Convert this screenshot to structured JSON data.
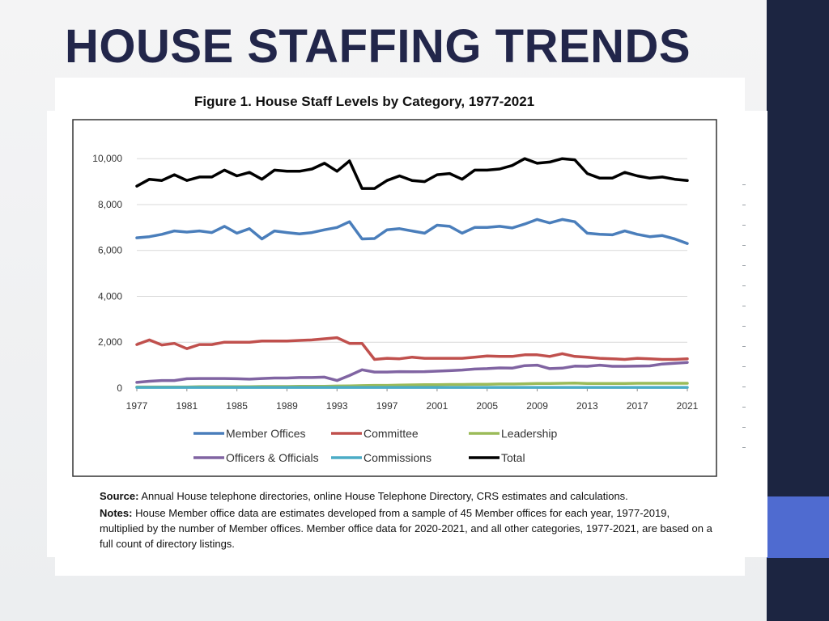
{
  "slide": {
    "title": "HOUSE STAFFING TRENDS",
    "accent_color": "#1c2541",
    "highlight_color": "#4f6bd0"
  },
  "figure": {
    "caption": "Figure 1. House Staff Levels by Category, 1977-2021",
    "source_label": "Source:",
    "source_text": "Annual House telephone directories, online House Telephone Directory, CRS estimates and calculations.",
    "notes_label": "Notes:",
    "notes_text": "House Member office data are estimates developed from a sample of 45 Member offices for each year, 1977-2019, multiplied by the number of Member offices. Member office data for 2020-2021, and all other categories, 1977-2021, are based on a full count of directory listings."
  },
  "chart_data": {
    "type": "line",
    "title": "Figure 1. House Staff Levels by Category, 1977-2021",
    "xlabel": "",
    "ylabel": "",
    "x": [
      1977,
      1978,
      1979,
      1980,
      1981,
      1982,
      1983,
      1984,
      1985,
      1986,
      1987,
      1988,
      1989,
      1990,
      1991,
      1992,
      1993,
      1994,
      1995,
      1996,
      1997,
      1998,
      1999,
      2000,
      2001,
      2002,
      2003,
      2004,
      2005,
      2006,
      2007,
      2008,
      2009,
      2010,
      2011,
      2012,
      2013,
      2014,
      2015,
      2016,
      2017,
      2018,
      2019,
      2020,
      2021
    ],
    "x_ticks": [
      "1977",
      "1981",
      "1985",
      "1989",
      "1993",
      "1997",
      "2001",
      "2005",
      "2009",
      "2013",
      "2017",
      "2021"
    ],
    "y_ticks": [
      "0",
      "2,000",
      "4,000",
      "6,000",
      "8,000",
      "10,000"
    ],
    "ylim": [
      0,
      10500
    ],
    "grid": true,
    "legend_position": "bottom",
    "series": [
      {
        "name": "Member Offices",
        "color": "#4a7ebb",
        "values": [
          6550,
          6600,
          6700,
          6850,
          6800,
          6850,
          6780,
          7050,
          6750,
          6950,
          6500,
          6850,
          6780,
          6720,
          6780,
          6900,
          7000,
          7250,
          6500,
          6520,
          6900,
          6950,
          6850,
          6750,
          7100,
          7050,
          6750,
          7000,
          7000,
          7050,
          6980,
          7150,
          7350,
          7200,
          7350,
          7250,
          6750,
          6700,
          6680,
          6850,
          6700,
          6600,
          6650,
          6500,
          6300
        ]
      },
      {
        "name": "Committee",
        "color": "#c0504d",
        "values": [
          1900,
          2100,
          1880,
          1950,
          1720,
          1900,
          1900,
          2000,
          2000,
          2000,
          2050,
          2050,
          2050,
          2080,
          2100,
          2150,
          2200,
          1950,
          1950,
          1250,
          1300,
          1280,
          1350,
          1300,
          1300,
          1300,
          1300,
          1350,
          1400,
          1380,
          1380,
          1450,
          1450,
          1380,
          1500,
          1380,
          1350,
          1300,
          1280,
          1250,
          1300,
          1280,
          1250,
          1250,
          1280
        ]
      },
      {
        "name": "Leadership",
        "color": "#9bbb59",
        "values": [
          50,
          50,
          50,
          50,
          50,
          60,
          60,
          60,
          60,
          60,
          70,
          70,
          70,
          80,
          80,
          80,
          90,
          100,
          110,
          120,
          120,
          130,
          140,
          150,
          150,
          160,
          160,
          170,
          170,
          180,
          180,
          190,
          200,
          200,
          210,
          220,
          200,
          200,
          200,
          200,
          210,
          210,
          210,
          210,
          210
        ]
      },
      {
        "name": "Officers & Officials",
        "color": "#8064a2",
        "values": [
          250,
          300,
          330,
          330,
          410,
          420,
          420,
          420,
          410,
          390,
          420,
          440,
          440,
          460,
          460,
          480,
          330,
          550,
          800,
          700,
          700,
          720,
          710,
          720,
          740,
          760,
          790,
          830,
          850,
          880,
          870,
          980,
          1000,
          850,
          870,
          960,
          950,
          1000,
          950,
          950,
          960,
          970,
          1050,
          1080,
          1120
        ]
      },
      {
        "name": "Commissions",
        "color": "#4bacc6",
        "values": [
          30,
          30,
          30,
          30,
          30,
          30,
          30,
          30,
          30,
          30,
          30,
          30,
          30,
          30,
          30,
          30,
          30,
          30,
          30,
          30,
          30,
          30,
          30,
          30,
          30,
          30,
          30,
          30,
          30,
          30,
          30,
          30,
          30,
          30,
          30,
          30,
          30,
          30,
          30,
          30,
          30,
          30,
          30,
          30,
          30
        ]
      },
      {
        "name": "Total",
        "color": "#000000",
        "values": [
          8800,
          9100,
          9050,
          9300,
          9050,
          9200,
          9200,
          9500,
          9250,
          9400,
          9100,
          9500,
          9450,
          9450,
          9550,
          9800,
          9450,
          9900,
          8700,
          8700,
          9050,
          9250,
          9050,
          9000,
          9300,
          9350,
          9100,
          9500,
          9500,
          9550,
          9700,
          10000,
          9800,
          9850,
          10000,
          9950,
          9350,
          9150,
          9150,
          9400,
          9250,
          9150,
          9200,
          9100,
          9050
        ]
      }
    ]
  }
}
